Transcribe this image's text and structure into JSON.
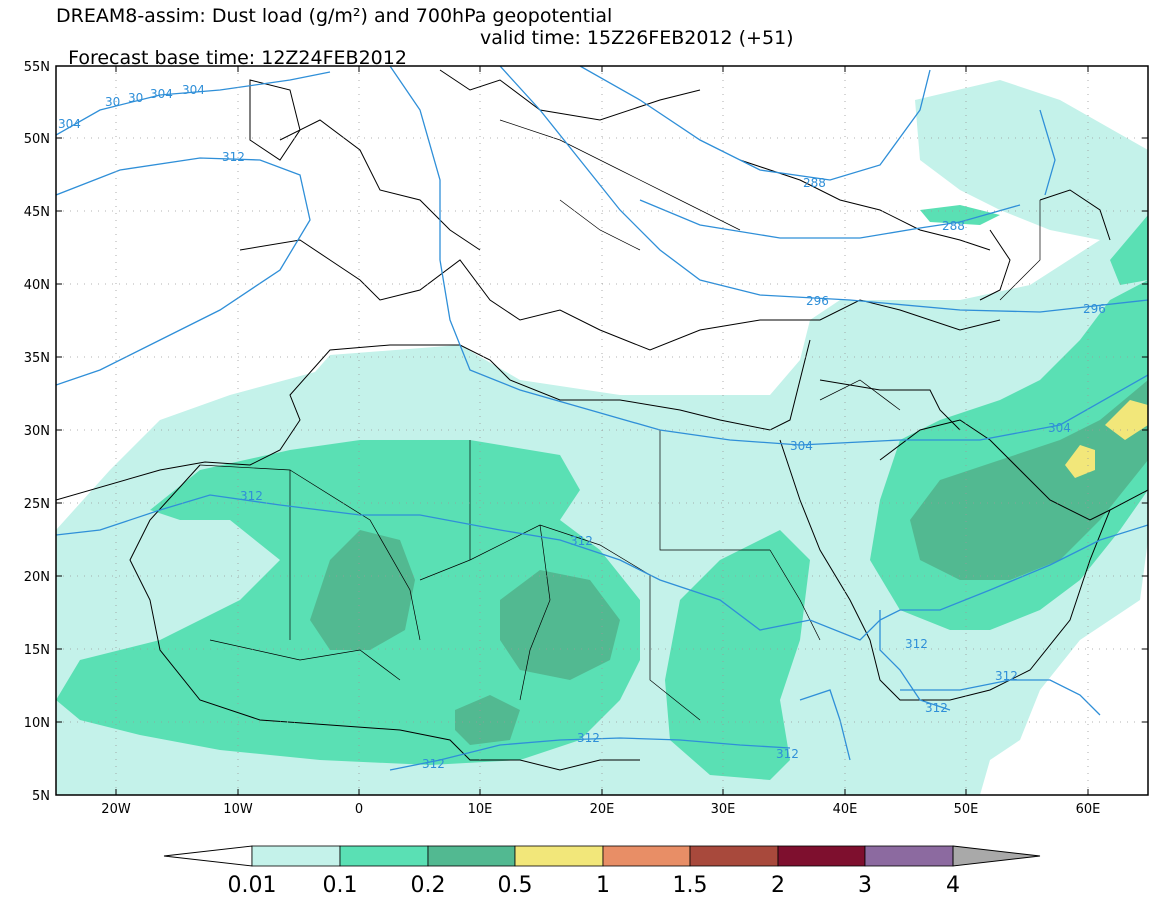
{
  "title_line1": "DREAM8-assim: Dust load (g/m²) and 700hPa geopotential",
  "title_line2_base": "Forecast base time: 12Z24FEB2012",
  "title_line2_valid": "valid time: 15Z26FEB2012 (+51)",
  "lat_labels": [
    "55N",
    "50N",
    "45N",
    "40N",
    "35N",
    "30N",
    "25N",
    "20N",
    "15N",
    "10N",
    "5N"
  ],
  "lon_labels": [
    "20W",
    "10W",
    "0",
    "10E",
    "20E",
    "30E",
    "40E",
    "50E",
    "60E"
  ],
  "colorbar": {
    "boundaries": [
      "0.01",
      "0.1",
      "0.2",
      "0.5",
      "1",
      "1.5",
      "2",
      "3",
      "4"
    ],
    "colors": [
      "#c4f2ea",
      "#5ae0b4",
      "#52b991",
      "#f2e77a",
      "#e88e66",
      "#a8493c",
      "#7e0f2e",
      "#8c6aa0"
    ],
    "under_color": "#ffffff",
    "over_color": "#a9a9a9"
  },
  "contour_color": "#2f8fd8",
  "contour_labels": [
    "304",
    "30",
    "30",
    "304",
    "304",
    "312",
    "288",
    "288",
    "296",
    "296",
    "304",
    "304",
    "312",
    "312",
    "312",
    "312",
    "312",
    "312",
    "312",
    "312"
  ]
}
